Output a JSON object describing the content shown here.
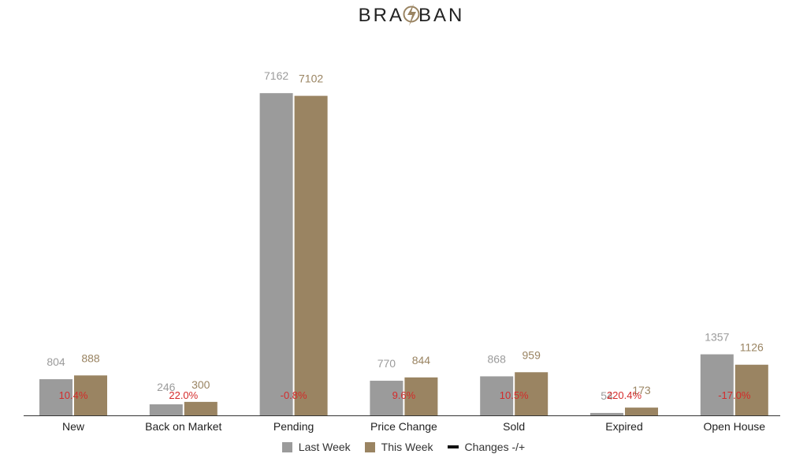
{
  "logo": {
    "left": "BRA",
    "right": "BAN"
  },
  "colors": {
    "last_week": "#9b9b9b",
    "this_week": "#9a8462",
    "change_text": "#d42b2b",
    "change_line": "#111111"
  },
  "chart_data": {
    "type": "bar",
    "categories": [
      "New",
      "Back on Market",
      "Pending",
      "Price Change",
      "Sold",
      "Expired",
      "Open House"
    ],
    "series": [
      {
        "name": "Last Week",
        "values": [
          804,
          246,
          7162,
          770,
          868,
          54,
          1357
        ]
      },
      {
        "name": "This Week",
        "values": [
          888,
          300,
          7102,
          844,
          959,
          173,
          1126
        ]
      }
    ],
    "changes": {
      "name": "Changes -/+",
      "labels": [
        "10.4%",
        "22.0%",
        "-0.8%",
        "9.6%",
        "10.5%",
        "220.4%",
        "-17.0%"
      ]
    },
    "ylim": [
      0,
      7200
    ],
    "grid": false,
    "legend_position": "bottom"
  },
  "legend": {
    "last_week": "Last Week",
    "this_week": "This Week",
    "changes": "Changes -/+"
  }
}
